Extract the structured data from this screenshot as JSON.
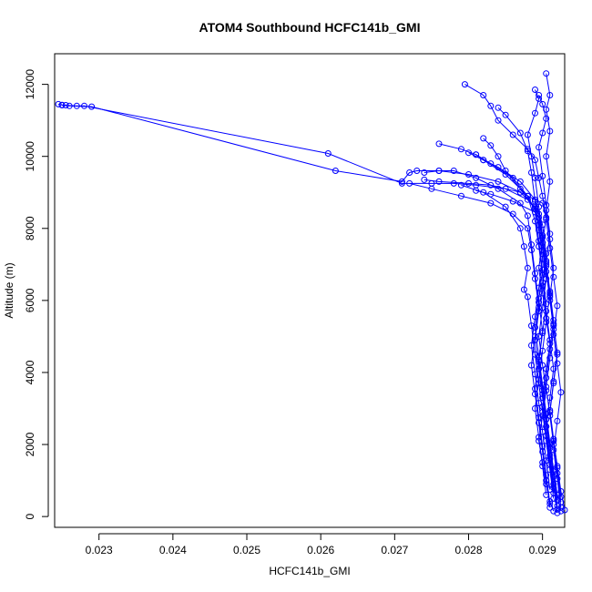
{
  "chart_data": {
    "type": "line",
    "title": "ATOM4 Southbound HCFC141b_GMI",
    "xlabel": "HCFC141b_GMI",
    "ylabel": "Altitude (m)",
    "xlim": [
      0.0224,
      0.0293
    ],
    "ylim": [
      -300,
      12850
    ],
    "x_ticks": [
      0.023,
      0.024,
      0.025,
      0.026,
      0.027,
      0.028,
      0.029
    ],
    "x_tick_labels": [
      "0.023",
      "0.024",
      "0.025",
      "0.026",
      "0.027",
      "0.028",
      "0.029"
    ],
    "y_ticks": [
      0,
      2000,
      4000,
      6000,
      8000,
      10000,
      12000
    ],
    "y_tick_labels": [
      "0",
      "2000",
      "4000",
      "6000",
      "8000",
      "10000",
      "12000"
    ],
    "grid": false,
    "legend": "none",
    "marker": "open-circle",
    "series_color": "#0000ff",
    "series": [
      {
        "values": [
          [
            0.02915,
            150
          ],
          [
            0.0291,
            420
          ],
          [
            0.02905,
            900
          ],
          [
            0.029,
            1500
          ],
          [
            0.02895,
            2100
          ],
          [
            0.029,
            2800
          ],
          [
            0.02905,
            3500
          ],
          [
            0.029,
            4200
          ],
          [
            0.02895,
            5000
          ],
          [
            0.029,
            5800
          ],
          [
            0.02905,
            6600
          ],
          [
            0.029,
            7400
          ],
          [
            0.02895,
            8100
          ],
          [
            0.0289,
            8600
          ],
          [
            0.0287,
            9000
          ],
          [
            0.0284,
            9300
          ],
          [
            0.028,
            9500
          ],
          [
            0.0276,
            9600
          ],
          [
            0.0273,
            9600
          ],
          [
            0.0272,
            9550
          ],
          [
            0.0271,
            9300
          ],
          [
            0.0262,
            9600
          ],
          [
            0.0229,
            11380
          ],
          [
            0.0226,
            11400
          ],
          [
            0.02255,
            11420
          ],
          [
            0.0225,
            11430
          ],
          [
            0.02245,
            11450
          ]
        ]
      },
      {
        "values": [
          [
            0.0292,
            200
          ],
          [
            0.02915,
            800
          ],
          [
            0.0291,
            1600
          ],
          [
            0.02905,
            2500
          ],
          [
            0.029,
            3300
          ],
          [
            0.02895,
            4100
          ],
          [
            0.0289,
            4900
          ],
          [
            0.02895,
            5700
          ],
          [
            0.029,
            6400
          ],
          [
            0.02905,
            7100
          ],
          [
            0.029,
            7800
          ],
          [
            0.02895,
            8400
          ],
          [
            0.0288,
            8800
          ],
          [
            0.0285,
            9100
          ],
          [
            0.0281,
            9200
          ],
          [
            0.0278,
            9250
          ],
          [
            0.0275,
            9250
          ],
          [
            0.0271,
            9250
          ],
          [
            0.0261,
            10080
          ],
          [
            0.0228,
            11400
          ],
          [
            0.0227,
            11400
          ],
          [
            0.0225,
            11420
          ]
        ]
      },
      {
        "values": [
          [
            0.02925,
            150
          ],
          [
            0.0292,
            600
          ],
          [
            0.02915,
            1300
          ],
          [
            0.0291,
            2000
          ],
          [
            0.02905,
            2700
          ],
          [
            0.029,
            3400
          ],
          [
            0.02905,
            4100
          ],
          [
            0.0291,
            4800
          ],
          [
            0.02905,
            5500
          ],
          [
            0.029,
            6200
          ],
          [
            0.02895,
            6900
          ],
          [
            0.029,
            7600
          ],
          [
            0.02905,
            8300
          ],
          [
            0.029,
            8900
          ],
          [
            0.02895,
            9400
          ],
          [
            0.0289,
            9900
          ],
          [
            0.0288,
            10200
          ],
          [
            0.0286,
            10600
          ],
          [
            0.0284,
            11000
          ],
          [
            0.0283,
            11400
          ],
          [
            0.0282,
            11700
          ],
          [
            0.02795,
            12000
          ]
        ]
      },
      {
        "values": [
          [
            0.0293,
            180
          ],
          [
            0.02925,
            700
          ],
          [
            0.0292,
            1400
          ],
          [
            0.02915,
            2100
          ],
          [
            0.0291,
            2900
          ],
          [
            0.02915,
            3700
          ],
          [
            0.0292,
            4500
          ],
          [
            0.02915,
            5300
          ],
          [
            0.0291,
            6100
          ],
          [
            0.02915,
            6900
          ],
          [
            0.0291,
            7700
          ],
          [
            0.02905,
            8500
          ],
          [
            0.0291,
            9300
          ],
          [
            0.02905,
            10000
          ],
          [
            0.0291,
            10700
          ],
          [
            0.02905,
            11300
          ],
          [
            0.0291,
            11700
          ],
          [
            0.02905,
            12300
          ]
        ]
      },
      {
        "values": [
          [
            0.0291,
            250
          ],
          [
            0.02905,
            1000
          ],
          [
            0.029,
            1800
          ],
          [
            0.02895,
            2600
          ],
          [
            0.0289,
            3400
          ],
          [
            0.02885,
            4200
          ],
          [
            0.0289,
            5000
          ],
          [
            0.02895,
            5800
          ],
          [
            0.0289,
            6600
          ],
          [
            0.02885,
            7400
          ],
          [
            0.0288,
            8000
          ],
          [
            0.0286,
            8400
          ],
          [
            0.0283,
            8700
          ],
          [
            0.0279,
            8900
          ],
          [
            0.0275,
            9100
          ],
          [
            0.0272,
            9250
          ]
        ]
      },
      {
        "values": [
          [
            0.0292,
            300
          ],
          [
            0.02915,
            1100
          ],
          [
            0.0291,
            1900
          ],
          [
            0.02905,
            2700
          ],
          [
            0.029,
            3500
          ],
          [
            0.02895,
            4300
          ],
          [
            0.029,
            5100
          ],
          [
            0.02905,
            5900
          ],
          [
            0.029,
            6700
          ],
          [
            0.02895,
            7500
          ],
          [
            0.0289,
            8200
          ],
          [
            0.0288,
            8900
          ],
          [
            0.0286,
            9400
          ],
          [
            0.0283,
            9800
          ],
          [
            0.0281,
            10050
          ],
          [
            0.0279,
            10200
          ],
          [
            0.0276,
            10350
          ]
        ]
      },
      {
        "values": [
          [
            0.02925,
            400
          ],
          [
            0.0292,
            1200
          ],
          [
            0.02915,
            2000
          ],
          [
            0.0291,
            2800
          ],
          [
            0.02905,
            3600
          ],
          [
            0.0291,
            4400
          ],
          [
            0.02915,
            5200
          ],
          [
            0.0291,
            6000
          ],
          [
            0.02905,
            6800
          ],
          [
            0.029,
            7600
          ],
          [
            0.02895,
            8300
          ],
          [
            0.0288,
            8900
          ],
          [
            0.0285,
            9500
          ],
          [
            0.0282,
            9900
          ],
          [
            0.028,
            10100
          ]
        ]
      },
      {
        "values": [
          [
            0.02915,
            500
          ],
          [
            0.0291,
            1300
          ],
          [
            0.02905,
            2100
          ],
          [
            0.029,
            2900
          ],
          [
            0.02895,
            3700
          ],
          [
            0.0289,
            4500
          ],
          [
            0.02885,
            5300
          ],
          [
            0.0288,
            6100
          ],
          [
            0.02875,
            6300
          ],
          [
            0.0288,
            6900
          ],
          [
            0.02875,
            7500
          ],
          [
            0.0287,
            8000
          ],
          [
            0.0285,
            8600
          ],
          [
            0.0282,
            9000
          ],
          [
            0.0279,
            9200
          ]
        ]
      },
      {
        "values": [
          [
            0.0292,
            100
          ],
          [
            0.02915,
            900
          ],
          [
            0.0291,
            1700
          ],
          [
            0.02905,
            2500
          ],
          [
            0.0291,
            3300
          ],
          [
            0.02915,
            4100
          ],
          [
            0.0291,
            4900
          ],
          [
            0.02905,
            5700
          ],
          [
            0.029,
            6500
          ],
          [
            0.02905,
            7300
          ],
          [
            0.029,
            8100
          ],
          [
            0.0289,
            8800
          ],
          [
            0.0287,
            9300
          ],
          [
            0.0284,
            9700
          ],
          [
            0.0282,
            9900
          ],
          [
            0.0281,
            10050
          ]
        ]
      },
      {
        "values": [
          [
            0.02905,
            600
          ],
          [
            0.029,
            1400
          ],
          [
            0.02895,
            2200
          ],
          [
            0.0289,
            3000
          ],
          [
            0.02895,
            3800
          ],
          [
            0.029,
            4600
          ],
          [
            0.02905,
            5400
          ],
          [
            0.0291,
            6200
          ],
          [
            0.02905,
            7000
          ],
          [
            0.029,
            7800
          ],
          [
            0.02895,
            8600
          ],
          [
            0.0289,
            9400
          ],
          [
            0.02885,
            10000
          ],
          [
            0.0288,
            10600
          ],
          [
            0.0289,
            11200
          ],
          [
            0.02895,
            11600
          ],
          [
            0.0289,
            11850
          ]
        ]
      },
      {
        "values": [
          [
            0.02925,
            250
          ],
          [
            0.0292,
            1050
          ],
          [
            0.02915,
            1850
          ],
          [
            0.0292,
            2650
          ],
          [
            0.02925,
            3450
          ],
          [
            0.0292,
            4250
          ],
          [
            0.02915,
            5050
          ],
          [
            0.0292,
            5850
          ],
          [
            0.02915,
            6650
          ],
          [
            0.0291,
            7450
          ],
          [
            0.02905,
            8250
          ],
          [
            0.029,
            8700
          ],
          [
            0.0287,
            9000
          ],
          [
            0.0283,
            9200
          ],
          [
            0.028,
            9250
          ],
          [
            0.0276,
            9300
          ],
          [
            0.0274,
            9350
          ]
        ]
      },
      {
        "values": [
          [
            0.0291,
            350
          ],
          [
            0.02905,
            1150
          ],
          [
            0.029,
            1950
          ],
          [
            0.02895,
            2750
          ],
          [
            0.0289,
            3550
          ],
          [
            0.02895,
            4350
          ],
          [
            0.029,
            5150
          ],
          [
            0.02895,
            5950
          ],
          [
            0.0289,
            6750
          ],
          [
            0.02885,
            7550
          ],
          [
            0.0288,
            8350
          ],
          [
            0.0287,
            8700
          ],
          [
            0.0284,
            9100
          ],
          [
            0.0281,
            9400
          ],
          [
            0.0278,
            9600
          ],
          [
            0.0276,
            9600
          ],
          [
            0.0274,
            9550
          ]
        ]
      },
      {
        "values": [
          [
            0.02915,
            650
          ],
          [
            0.0291,
            1450
          ],
          [
            0.02905,
            2250
          ],
          [
            0.029,
            3050
          ],
          [
            0.02905,
            3850
          ],
          [
            0.0291,
            4650
          ],
          [
            0.02915,
            5450
          ],
          [
            0.0291,
            6250
          ],
          [
            0.02905,
            7050
          ],
          [
            0.0291,
            7850
          ],
          [
            0.02905,
            8650
          ],
          [
            0.029,
            9450
          ],
          [
            0.02895,
            10250
          ],
          [
            0.029,
            10650
          ],
          [
            0.02905,
            11050
          ],
          [
            0.029,
            11450
          ],
          [
            0.02895,
            11700
          ]
        ]
      },
      {
        "values": [
          [
            0.0292,
            450
          ],
          [
            0.02915,
            1250
          ],
          [
            0.0291,
            2050
          ],
          [
            0.02905,
            2850
          ],
          [
            0.029,
            3650
          ],
          [
            0.02895,
            4450
          ],
          [
            0.0289,
            5250
          ],
          [
            0.02895,
            6050
          ],
          [
            0.029,
            6850
          ],
          [
            0.02895,
            7650
          ],
          [
            0.0289,
            8450
          ],
          [
            0.0286,
            8750
          ],
          [
            0.0283,
            8950
          ],
          [
            0.0281,
            9050
          ]
        ]
      },
      {
        "values": [
          [
            0.02925,
            550
          ],
          [
            0.0292,
            1350
          ],
          [
            0.02915,
            2150
          ],
          [
            0.0291,
            2950
          ],
          [
            0.02915,
            3750
          ],
          [
            0.0292,
            4550
          ],
          [
            0.02915,
            5350
          ],
          [
            0.0291,
            6150
          ],
          [
            0.02905,
            6950
          ],
          [
            0.029,
            7750
          ],
          [
            0.0289,
            8550
          ],
          [
            0.0287,
            9100
          ],
          [
            0.0285,
            9600
          ],
          [
            0.0284,
            10000
          ],
          [
            0.0283,
            10300
          ],
          [
            0.0282,
            10500
          ]
        ]
      },
      {
        "values": [
          [
            0.0291,
            750
          ],
          [
            0.02905,
            1550
          ],
          [
            0.029,
            2350
          ],
          [
            0.02895,
            3150
          ],
          [
            0.0289,
            3950
          ],
          [
            0.02885,
            4750
          ],
          [
            0.0289,
            5550
          ],
          [
            0.02895,
            6350
          ],
          [
            0.029,
            7150
          ],
          [
            0.02895,
            7950
          ],
          [
            0.0289,
            8750
          ],
          [
            0.02885,
            9550
          ],
          [
            0.0288,
            10150
          ],
          [
            0.0287,
            10650
          ],
          [
            0.0285,
            11150
          ],
          [
            0.0284,
            11350
          ]
        ]
      }
    ]
  }
}
